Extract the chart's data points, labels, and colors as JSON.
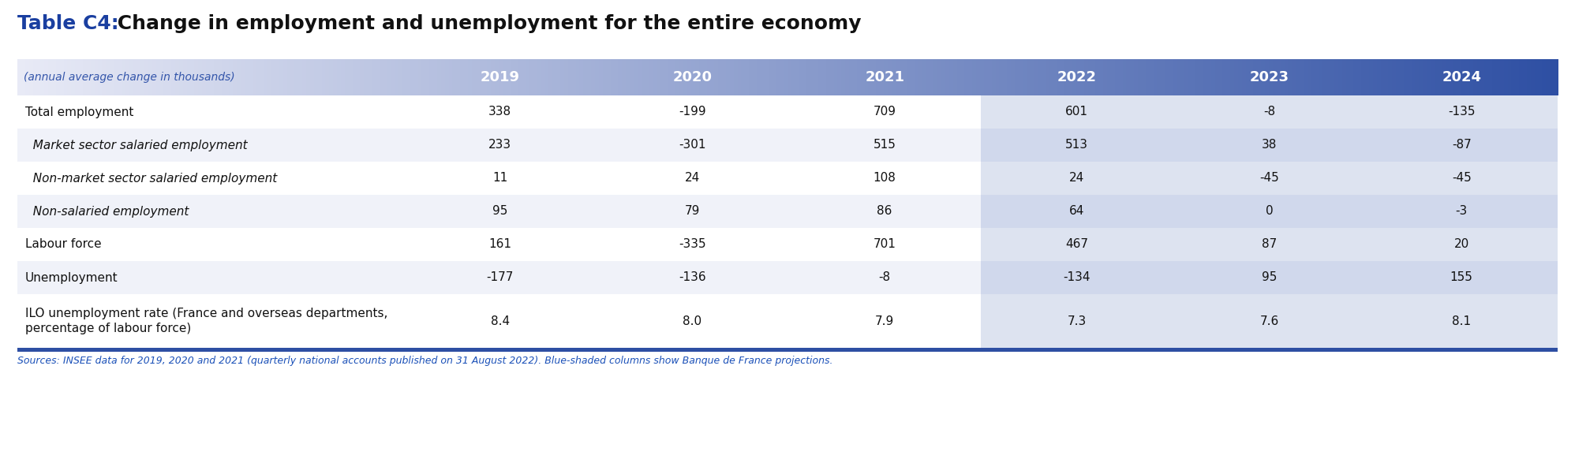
{
  "title_prefix": "Table C4:",
  "title_suffix": " Change in employment and unemployment for the entire economy",
  "subtitle": "(annual average change in thousands)",
  "years": [
    "2019",
    "2020",
    "2021",
    "2022",
    "2023",
    "2024"
  ],
  "rows": [
    {
      "label": "Total employment",
      "indent": false,
      "italic": false,
      "values": [
        "338",
        "-199",
        "709",
        "601",
        "-8",
        "-135"
      ]
    },
    {
      "label": "  Market sector salaried employment",
      "indent": false,
      "italic": true,
      "values": [
        "233",
        "-301",
        "515",
        "513",
        "38",
        "-87"
      ]
    },
    {
      "label": "  Non-market sector salaried employment",
      "indent": false,
      "italic": true,
      "values": [
        "11",
        "24",
        "108",
        "24",
        "-45",
        "-45"
      ]
    },
    {
      "label": "  Non-salaried employment",
      "indent": false,
      "italic": true,
      "values": [
        "95",
        "79",
        "86",
        "64",
        "0",
        "-3"
      ]
    },
    {
      "label": "Labour force",
      "indent": false,
      "italic": false,
      "values": [
        "161",
        "-335",
        "701",
        "467",
        "87",
        "20"
      ]
    },
    {
      "label": "Unemployment",
      "indent": false,
      "italic": false,
      "values": [
        "-177",
        "-136",
        "-8",
        "-134",
        "95",
        "155"
      ]
    },
    {
      "label": "ILO unemployment rate (France and overseas departments,\npercentage of labour force)",
      "indent": false,
      "italic": false,
      "values": [
        "8.4",
        "8.0",
        "7.9",
        "7.3",
        "7.6",
        "8.1"
      ]
    }
  ],
  "footer": "Sources: INSEE data for 2019, 2020 and 2021 (quarterly national accounts published on 31 August 2022). Blue-shaded columns show Banque de France projections.",
  "gradient_start": "#e8eaf6",
  "gradient_end": "#2e4fa3",
  "header_text_color": "#ffffff",
  "row_bg_even": "#ffffff",
  "row_bg_odd": "#f0f2f9",
  "proj_bg_even": "#dde3f0",
  "proj_bg_odd": "#d0d8ec",
  "bottom_bar_color": "#2e4fa3",
  "title_blue": "#1a3fa0",
  "title_black": "#111111",
  "footer_blue": "#1a50b8",
  "subtitle_color": "#3355aa"
}
